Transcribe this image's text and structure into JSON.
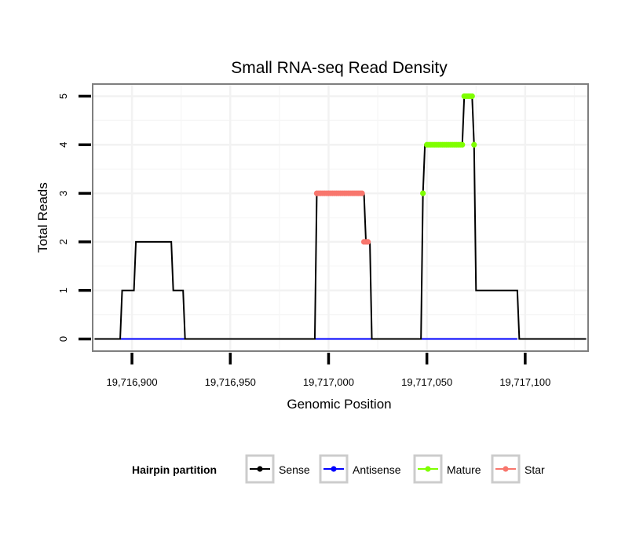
{
  "chart_data": {
    "type": "line",
    "title": "Small RNA-seq Read Density",
    "xlabel": "Genomic Position",
    "ylabel": "Total Reads",
    "xlim": [
      19716880,
      19717132
    ],
    "ylim": [
      -0.25,
      5.25
    ],
    "x_ticks": [
      19716900,
      19716950,
      19717000,
      19717050,
      19717100
    ],
    "x_tick_labels": [
      "19,716,900",
      "19,716,950",
      "19,717,000",
      "19,717,050",
      "19,717,100"
    ],
    "y_ticks": [
      0,
      1,
      2,
      3,
      4,
      5
    ],
    "y_tick_labels": [
      "0",
      "1",
      "2",
      "3",
      "4",
      "5"
    ],
    "grid": true,
    "legend": {
      "title": "Hairpin partition",
      "position": "bottom",
      "entries": [
        "Sense",
        "Antisense",
        "Mature",
        "Star"
      ]
    },
    "series": [
      {
        "name": "Sense",
        "color": "#000000",
        "style": "line",
        "x": [
          19716881,
          19716894,
          19716895,
          19716901,
          19716902,
          19716920,
          19716921,
          19716926,
          19716927,
          19716993,
          19716994,
          19717012,
          19717013,
          19717018,
          19717019,
          19717021,
          19717022,
          19717047,
          19717048,
          19717049,
          19717050,
          19717068,
          19717069,
          19717073,
          19717074,
          19717075,
          19717096,
          19717097,
          19717131
        ],
        "y": [
          0,
          0,
          1,
          1,
          2,
          2,
          1,
          1,
          0,
          0,
          3,
          3,
          3,
          3,
          2,
          2,
          0,
          0,
          3,
          4,
          4,
          4,
          5,
          5,
          4,
          1,
          1,
          0,
          0
        ]
      },
      {
        "name": "Antisense",
        "color": "#0000ff",
        "style": "line",
        "x": [
          19716894,
          19716927,
          19716994,
          19717021,
          19717048,
          19717096
        ],
        "y": [
          0,
          0,
          0,
          0,
          0,
          0
        ]
      },
      {
        "name": "Mature",
        "color": "#7fff00",
        "style": "points",
        "x": [
          19717048,
          19717050,
          19717051,
          19717052,
          19717053,
          19717054,
          19717055,
          19717056,
          19717057,
          19717058,
          19717059,
          19717060,
          19717061,
          19717062,
          19717063,
          19717064,
          19717065,
          19717066,
          19717067,
          19717068,
          19717069,
          19717070,
          19717071,
          19717072,
          19717073,
          19717074
        ],
        "y": [
          3,
          4,
          4,
          4,
          4,
          4,
          4,
          4,
          4,
          4,
          4,
          4,
          4,
          4,
          4,
          4,
          4,
          4,
          4,
          4,
          5,
          5,
          5,
          5,
          5,
          4
        ]
      },
      {
        "name": "Star",
        "color": "#f8766d",
        "style": "points",
        "x": [
          19716994,
          19716995,
          19716996,
          19716997,
          19716998,
          19716999,
          19717000,
          19717001,
          19717002,
          19717003,
          19717004,
          19717005,
          19717006,
          19717007,
          19717008,
          19717009,
          19717010,
          19717011,
          19717012,
          19717013,
          19717014,
          19717015,
          19717016,
          19717017,
          19717018,
          19717019,
          19717020
        ],
        "y": [
          3,
          3,
          3,
          3,
          3,
          3,
          3,
          3,
          3,
          3,
          3,
          3,
          3,
          3,
          3,
          3,
          3,
          3,
          3,
          3,
          3,
          3,
          3,
          3,
          2,
          2,
          2
        ]
      }
    ]
  }
}
